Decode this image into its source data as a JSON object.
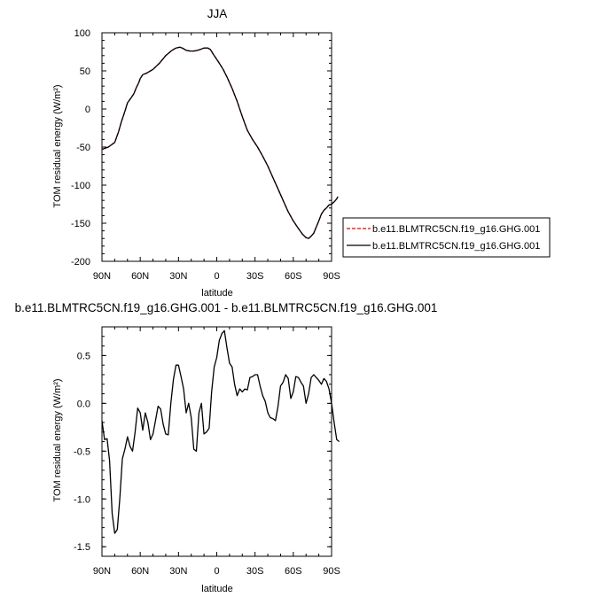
{
  "chart_data": [
    {
      "type": "line",
      "title": "JJA",
      "xlabel": "latitude",
      "ylabel": "TOM residual energy (W/m²)",
      "x_ticks": [
        "90N",
        "60N",
        "30N",
        "0",
        "30S",
        "60S",
        "90S"
      ],
      "y_ticks": [
        "100",
        "50",
        "0",
        "-50",
        "-100",
        "-150",
        "-200"
      ],
      "xlim": [
        90,
        -90
      ],
      "ylim": [
        -200,
        100
      ],
      "grid": false,
      "legend_position": "right",
      "series": [
        {
          "name": "b.e11.BLMTRC5CN.f19_g16.GHG.001",
          "color": "#e60000",
          "dash": "dashed",
          "points": [
            [
              90,
              -53
            ],
            [
              85,
              -50
            ],
            [
              80,
              -44
            ],
            [
              77,
              -30
            ],
            [
              75,
              -18
            ],
            [
              72,
              -3
            ],
            [
              70,
              8
            ],
            [
              67,
              15
            ],
            [
              65,
              20
            ],
            [
              63,
              28
            ],
            [
              61,
              35
            ],
            [
              60,
              40
            ],
            [
              58,
              45
            ],
            [
              55,
              47
            ],
            [
              50,
              52
            ],
            [
              45,
              60
            ],
            [
              40,
              70
            ],
            [
              35,
              77
            ],
            [
              32,
              80
            ],
            [
              29,
              81
            ],
            [
              27,
              80
            ],
            [
              24,
              77
            ],
            [
              21,
              76
            ],
            [
              18,
              76
            ],
            [
              15,
              77
            ],
            [
              13,
              78
            ],
            [
              10,
              80
            ],
            [
              7,
              80
            ],
            [
              5,
              78
            ],
            [
              2,
              70
            ],
            [
              -2,
              60
            ],
            [
              -5,
              52
            ],
            [
              -8,
              42
            ],
            [
              -12,
              27
            ],
            [
              -16,
              10
            ],
            [
              -20,
              -10
            ],
            [
              -24,
              -28
            ],
            [
              -28,
              -40
            ],
            [
              -32,
              -50
            ],
            [
              -36,
              -62
            ],
            [
              -40,
              -75
            ],
            [
              -44,
              -90
            ],
            [
              -48,
              -105
            ],
            [
              -52,
              -120
            ],
            [
              -56,
              -135
            ],
            [
              -60,
              -147
            ],
            [
              -64,
              -157
            ],
            [
              -67,
              -164
            ],
            [
              -70,
              -169
            ],
            [
              -72,
              -170
            ],
            [
              -74,
              -167
            ],
            [
              -76,
              -163
            ],
            [
              -78,
              -155
            ],
            [
              -80,
              -147
            ],
            [
              -82,
              -138
            ],
            [
              -84,
              -133
            ],
            [
              -86,
              -130
            ],
            [
              -88,
              -126
            ],
            [
              -90,
              -125
            ],
            [
              -92,
              -122
            ],
            [
              -94,
              -118
            ],
            [
              -95,
              -115
            ]
          ]
        },
        {
          "name": "b.e11.BLMTRC5CN.f19_g16.GHG.001",
          "color": "#000000",
          "dash": "solid",
          "points": [
            [
              90,
              -53
            ],
            [
              85,
              -50
            ],
            [
              80,
              -44
            ],
            [
              77,
              -30
            ],
            [
              75,
              -18
            ],
            [
              72,
              -3
            ],
            [
              70,
              8
            ],
            [
              67,
              15
            ],
            [
              65,
              20
            ],
            [
              63,
              28
            ],
            [
              61,
              35
            ],
            [
              60,
              40
            ],
            [
              58,
              45
            ],
            [
              55,
              47
            ],
            [
              50,
              52
            ],
            [
              45,
              60
            ],
            [
              40,
              70
            ],
            [
              35,
              77
            ],
            [
              32,
              80
            ],
            [
              29,
              81
            ],
            [
              27,
              80
            ],
            [
              24,
              77
            ],
            [
              21,
              76
            ],
            [
              18,
              76
            ],
            [
              15,
              77
            ],
            [
              13,
              78
            ],
            [
              10,
              80
            ],
            [
              7,
              80
            ],
            [
              5,
              78
            ],
            [
              2,
              70
            ],
            [
              -2,
              60
            ],
            [
              -5,
              52
            ],
            [
              -8,
              42
            ],
            [
              -12,
              27
            ],
            [
              -16,
              10
            ],
            [
              -20,
              -10
            ],
            [
              -24,
              -28
            ],
            [
              -28,
              -40
            ],
            [
              -32,
              -50
            ],
            [
              -36,
              -62
            ],
            [
              -40,
              -75
            ],
            [
              -44,
              -90
            ],
            [
              -48,
              -105
            ],
            [
              -52,
              -120
            ],
            [
              -56,
              -135
            ],
            [
              -60,
              -147
            ],
            [
              -64,
              -157
            ],
            [
              -67,
              -164
            ],
            [
              -70,
              -169
            ],
            [
              -72,
              -170
            ],
            [
              -74,
              -167
            ],
            [
              -76,
              -163
            ],
            [
              -78,
              -155
            ],
            [
              -80,
              -147
            ],
            [
              -82,
              -138
            ],
            [
              -84,
              -133
            ],
            [
              -86,
              -130
            ],
            [
              -88,
              -126
            ],
            [
              -90,
              -125
            ],
            [
              -92,
              -122
            ],
            [
              -94,
              -118
            ],
            [
              -95,
              -115
            ]
          ]
        }
      ]
    },
    {
      "type": "line",
      "title": "b.e11.BLMTRC5CN.f19_g16.GHG.001 - b.e11.BLMTRC5CN.f19_g16.GHG.001",
      "xlabel": "latitude",
      "ylabel": "TOM residual energy (W/m²)",
      "x_ticks": [
        "90N",
        "60N",
        "30N",
        "0",
        "30S",
        "60S",
        "90S"
      ],
      "y_ticks": [
        "0.5",
        "0.0",
        "-0.5",
        "-1.0",
        "-1.5"
      ],
      "xlim": [
        90,
        -90
      ],
      "ylim": [
        -1.6,
        0.8
      ],
      "grid": false,
      "series": [
        {
          "color": "#000000",
          "dash": "solid",
          "points": [
            [
              90,
              -0.18
            ],
            [
              88,
              -0.38
            ],
            [
              86,
              -0.37
            ],
            [
              84,
              -0.6
            ],
            [
              82,
              -1.15
            ],
            [
              80,
              -1.36
            ],
            [
              78,
              -1.32
            ],
            [
              76,
              -1.0
            ],
            [
              74,
              -0.58
            ],
            [
              72,
              -0.48
            ],
            [
              70,
              -0.35
            ],
            [
              68,
              -0.45
            ],
            [
              66,
              -0.5
            ],
            [
              64,
              -0.3
            ],
            [
              62,
              -0.05
            ],
            [
              60,
              -0.1
            ],
            [
              58,
              -0.28
            ],
            [
              56,
              -0.1
            ],
            [
              54,
              -0.2
            ],
            [
              52,
              -0.38
            ],
            [
              50,
              -0.32
            ],
            [
              48,
              -0.18
            ],
            [
              46,
              -0.03
            ],
            [
              44,
              -0.06
            ],
            [
              42,
              -0.22
            ],
            [
              40,
              -0.32
            ],
            [
              38,
              -0.33
            ],
            [
              36,
              0.0
            ],
            [
              34,
              0.25
            ],
            [
              32,
              0.4
            ],
            [
              30,
              0.4
            ],
            [
              28,
              0.28
            ],
            [
              26,
              0.15
            ],
            [
              24,
              -0.1
            ],
            [
              22,
              0.0
            ],
            [
              20,
              -0.15
            ],
            [
              18,
              -0.48
            ],
            [
              16,
              -0.5
            ],
            [
              14,
              -0.1
            ],
            [
              12,
              0.0
            ],
            [
              10,
              -0.32
            ],
            [
              8,
              -0.3
            ],
            [
              6,
              -0.26
            ],
            [
              4,
              0.12
            ],
            [
              2,
              0.38
            ],
            [
              0,
              0.48
            ],
            [
              -2,
              0.66
            ],
            [
              -4,
              0.73
            ],
            [
              -6,
              0.76
            ],
            [
              -8,
              0.58
            ],
            [
              -10,
              0.42
            ],
            [
              -12,
              0.38
            ],
            [
              -14,
              0.2
            ],
            [
              -16,
              0.08
            ],
            [
              -18,
              0.15
            ],
            [
              -20,
              0.12
            ],
            [
              -22,
              0.15
            ],
            [
              -24,
              0.14
            ],
            [
              -26,
              0.27
            ],
            [
              -28,
              0.28
            ],
            [
              -30,
              0.3
            ],
            [
              -32,
              0.3
            ],
            [
              -34,
              0.18
            ],
            [
              -36,
              0.08
            ],
            [
              -38,
              0.02
            ],
            [
              -40,
              -0.1
            ],
            [
              -42,
              -0.15
            ],
            [
              -44,
              -0.16
            ],
            [
              -46,
              -0.18
            ],
            [
              -48,
              -0.03
            ],
            [
              -50,
              0.18
            ],
            [
              -52,
              0.22
            ],
            [
              -54,
              0.3
            ],
            [
              -56,
              0.26
            ],
            [
              -58,
              0.05
            ],
            [
              -60,
              0.12
            ],
            [
              -62,
              0.28
            ],
            [
              -64,
              0.27
            ],
            [
              -66,
              0.22
            ],
            [
              -68,
              0.18
            ],
            [
              -70,
              0.0
            ],
            [
              -72,
              0.1
            ],
            [
              -74,
              0.27
            ],
            [
              -76,
              0.3
            ],
            [
              -78,
              0.27
            ],
            [
              -80,
              0.24
            ],
            [
              -82,
              0.2
            ],
            [
              -84,
              0.26
            ],
            [
              -86,
              0.23
            ],
            [
              -88,
              0.15
            ],
            [
              -90,
              0.0
            ],
            [
              -92,
              -0.2
            ],
            [
              -94,
              -0.38
            ],
            [
              -96,
              -0.4
            ]
          ]
        }
      ]
    }
  ]
}
